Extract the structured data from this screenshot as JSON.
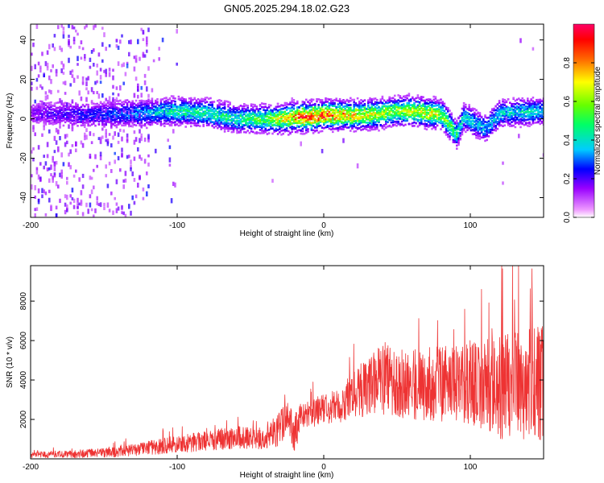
{
  "title": "GN05.2025.294.18.02.G23",
  "chart_data": [
    {
      "type": "heatmap",
      "name": "spectrogram",
      "xlabel": "Height of straight line (km)",
      "ylabel": "Frequency (Hz)",
      "xlim": [
        -200,
        150
      ],
      "ylim": [
        -50,
        48
      ],
      "xticks": [
        -200,
        -100,
        0,
        100
      ],
      "yticks": [
        -40,
        -20,
        0,
        20,
        40
      ],
      "colorbar": {
        "label": "Normalized spectral amplitude",
        "range": [
          0.0,
          1.0
        ],
        "ticks": [
          "0.0",
          "0.2",
          "0.4",
          "0.6",
          "0.8"
        ],
        "colors": [
          "#ee99ff",
          "#9900ff",
          "#0000ff",
          "#00ccff",
          "#00ff66",
          "#66ff00",
          "#ffff00",
          "#ff6600",
          "#ff0000",
          "#ff0066"
        ]
      },
      "ridge_frequency_hz": [
        [
          -200,
          3
        ],
        [
          -160,
          2
        ],
        [
          -120,
          3
        ],
        [
          -100,
          4
        ],
        [
          -80,
          3
        ],
        [
          -60,
          0
        ],
        [
          -40,
          0
        ],
        [
          -30,
          0
        ],
        [
          -20,
          1
        ],
        [
          -10,
          1
        ],
        [
          0,
          2
        ],
        [
          10,
          2
        ],
        [
          20,
          2
        ],
        [
          30,
          2
        ],
        [
          40,
          3
        ],
        [
          50,
          4
        ],
        [
          60,
          4
        ],
        [
          70,
          3
        ],
        [
          80,
          2
        ],
        [
          90,
          -8
        ],
        [
          95,
          1
        ],
        [
          110,
          -5
        ],
        [
          120,
          3
        ],
        [
          150,
          4
        ]
      ],
      "peak_amplitude": [
        [
          -200,
          0.15
        ],
        [
          -150,
          0.25
        ],
        [
          -120,
          0.35
        ],
        [
          -100,
          0.45
        ],
        [
          -80,
          0.45
        ],
        [
          -60,
          0.45
        ],
        [
          -40,
          0.55
        ],
        [
          -25,
          0.75
        ],
        [
          -15,
          0.9
        ],
        [
          -5,
          0.9
        ],
        [
          5,
          0.85
        ],
        [
          15,
          0.8
        ],
        [
          30,
          0.7
        ],
        [
          45,
          0.6
        ],
        [
          60,
          0.65
        ],
        [
          75,
          0.7
        ],
        [
          85,
          0.55
        ],
        [
          95,
          0.4
        ],
        [
          110,
          0.35
        ],
        [
          130,
          0.4
        ],
        [
          150,
          0.4
        ]
      ]
    },
    {
      "type": "line",
      "name": "snr",
      "xlabel": "Height of straight line (km)",
      "ylabel": "SNR (10 * v/v)",
      "xlim": [
        -200,
        150
      ],
      "ylim": [
        0,
        9800
      ],
      "xticks": [
        -200,
        -100,
        0,
        100
      ],
      "yticks": [
        2000,
        4000,
        6000,
        8000
      ],
      "color": "#ee3333",
      "series": [
        {
          "name": "SNR",
          "envelope": [
            {
              "x": -200,
              "mean": 200,
              "spread": 150
            },
            {
              "x": -170,
              "mean": 250,
              "spread": 200
            },
            {
              "x": -140,
              "mean": 350,
              "spread": 250
            },
            {
              "x": -120,
              "mean": 550,
              "spread": 350
            },
            {
              "x": -100,
              "mean": 750,
              "spread": 450
            },
            {
              "x": -80,
              "mean": 900,
              "spread": 500
            },
            {
              "x": -60,
              "mean": 1100,
              "spread": 600
            },
            {
              "x": -40,
              "mean": 1000,
              "spread": 500
            },
            {
              "x": -30,
              "mean": 1500,
              "spread": 900
            },
            {
              "x": -25,
              "mean": 2200,
              "spread": 900
            },
            {
              "x": -20,
              "mean": 1300,
              "spread": 1000
            },
            {
              "x": -15,
              "mean": 2200,
              "spread": 700
            },
            {
              "x": 0,
              "mean": 2500,
              "spread": 800
            },
            {
              "x": 15,
              "mean": 2800,
              "spread": 900
            },
            {
              "x": 25,
              "mean": 3500,
              "spread": 1400
            },
            {
              "x": 40,
              "mean": 4000,
              "spread": 1800
            },
            {
              "x": 60,
              "mean": 3800,
              "spread": 1800
            },
            {
              "x": 80,
              "mean": 3800,
              "spread": 1900
            },
            {
              "x": 100,
              "mean": 3700,
              "spread": 2200
            },
            {
              "x": 120,
              "mean": 3600,
              "spread": 2600
            },
            {
              "x": 140,
              "mean": 3800,
              "spread": 2900
            },
            {
              "x": 150,
              "mean": 3800,
              "spread": 3000
            }
          ]
        }
      ]
    }
  ]
}
